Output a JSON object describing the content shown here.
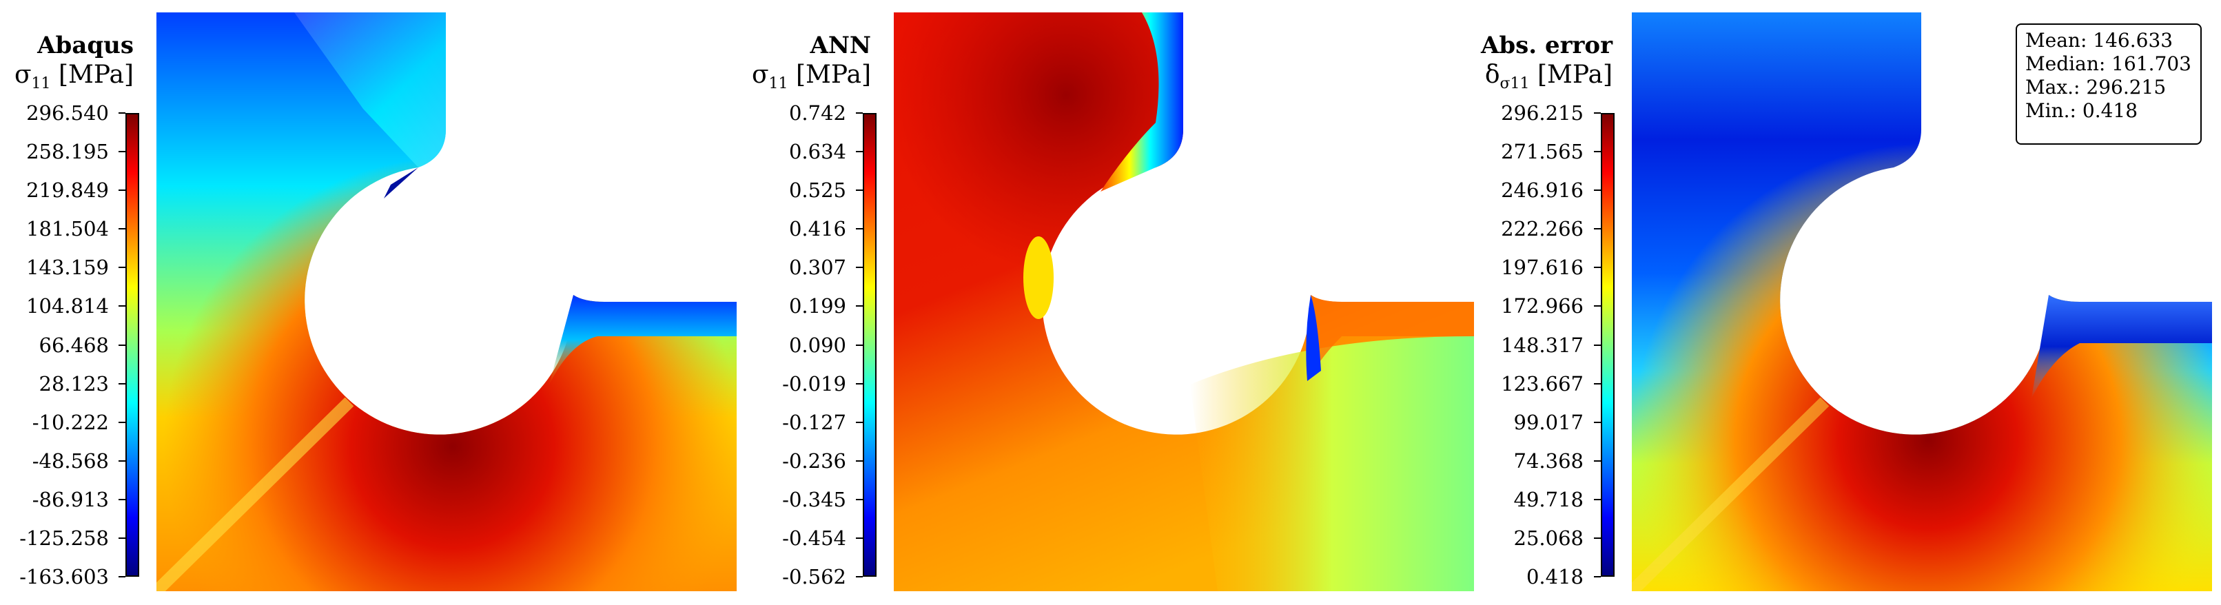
{
  "colors": {
    "jet": [
      "#00007f",
      "#0000ff",
      "#007fff",
      "#00ffff",
      "#7fff7f",
      "#ffff00",
      "#ff7f00",
      "#ff0000",
      "#7f0000"
    ],
    "frame": "#000000"
  },
  "chart_data": [
    {
      "type": "heatmap",
      "title": "Abaqus",
      "ylabel": "σ11 [MPa]",
      "symbol": "σ",
      "subscript": "11",
      "unit": "[MPa]",
      "colorbar_ticks": [
        "296.540",
        "258.195",
        "219.849",
        "181.504",
        "143.159",
        "104.814",
        "66.468",
        "28.123",
        "-10.222",
        "-48.568",
        "-86.913",
        "-125.258",
        "-163.603"
      ],
      "clim": [
        -163.603,
        296.54
      ],
      "colormap": "jet"
    },
    {
      "type": "heatmap",
      "title": "ANN",
      "ylabel": "σ11 [MPa]",
      "symbol": "σ",
      "subscript": "11",
      "unit": "[MPa]",
      "colorbar_ticks": [
        "0.742",
        "0.634",
        "0.525",
        "0.416",
        "0.307",
        "0.199",
        "0.090",
        "-0.019",
        "-0.127",
        "-0.236",
        "-0.345",
        "-0.454",
        "-0.562"
      ],
      "clim": [
        -0.562,
        0.742
      ],
      "colormap": "jet"
    },
    {
      "type": "heatmap",
      "title": "Abs. error",
      "ylabel": "δσ11 [MPa]",
      "symbol": "δ",
      "subscript": "σ11",
      "unit": "[MPa]",
      "colorbar_ticks": [
        "296.215",
        "271.565",
        "246.916",
        "222.266",
        "197.616",
        "172.966",
        "148.317",
        "123.667",
        "99.017",
        "74.368",
        "49.718",
        "25.068",
        "0.418"
      ],
      "clim": [
        0.418,
        296.215
      ],
      "colormap": "jet",
      "stats": [
        "Mean: 146.633",
        "Median: 161.703",
        "Max.: 296.215",
        "Min.: 0.418"
      ]
    }
  ]
}
